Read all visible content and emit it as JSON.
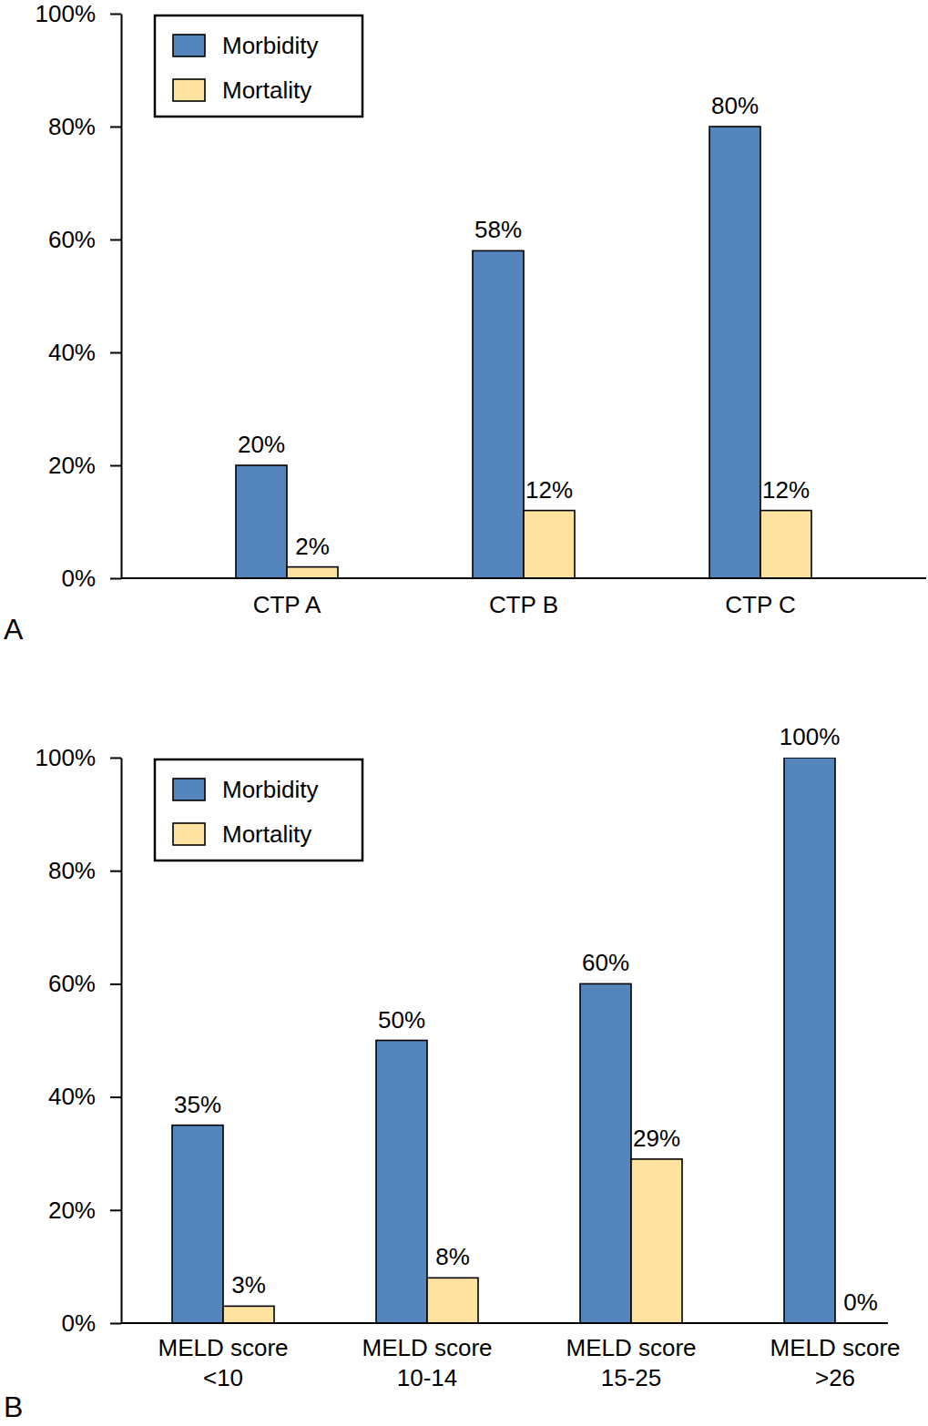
{
  "chart_data": [
    {
      "type": "bar",
      "title": "A",
      "categories": [
        "CTP A",
        "CTP B",
        "CTP C"
      ],
      "series": [
        {
          "name": "Morbidity",
          "color": "#5585bd",
          "values": [
            20,
            58,
            80
          ],
          "value_labels": [
            "20%",
            "58%",
            "80%"
          ]
        },
        {
          "name": "Mortality",
          "color": "#fee3a0",
          "values": [
            2,
            12,
            12
          ],
          "value_labels": [
            "2%",
            "12%",
            "12%"
          ]
        }
      ],
      "ylim": [
        0,
        100
      ],
      "yticks": [
        {
          "value": 0,
          "label": "0%"
        },
        {
          "value": 20,
          "label": "20%"
        },
        {
          "value": 40,
          "label": "40%"
        },
        {
          "value": 60,
          "label": "60%"
        },
        {
          "value": 80,
          "label": "80%"
        },
        {
          "value": 100,
          "label": "100%"
        }
      ],
      "legend": "upper left",
      "data_labels": true
    },
    {
      "type": "bar",
      "title": "B",
      "categories": [
        "MELD score <10",
        "MELD score 10-14",
        "MELD score 15-25",
        "MELD score >26"
      ],
      "series": [
        {
          "name": "Morbidity",
          "color": "#5585bd",
          "values": [
            35,
            50,
            60,
            100
          ],
          "value_labels": [
            "35%",
            "50%",
            "60%",
            "100%"
          ]
        },
        {
          "name": "Mortality",
          "color": "#fee3a0",
          "values": [
            3,
            8,
            29,
            0
          ],
          "value_labels": [
            "3%",
            "8%",
            "29%",
            "0%"
          ]
        }
      ],
      "ylim": [
        0,
        100
      ],
      "yticks": [
        {
          "value": 0,
          "label": "0%"
        },
        {
          "value": 20,
          "label": "20%"
        },
        {
          "value": 40,
          "label": "40%"
        },
        {
          "value": 60,
          "label": "60%"
        },
        {
          "value": 80,
          "label": "80%"
        },
        {
          "value": 100,
          "label": "100%"
        }
      ],
      "legend": "upper left",
      "data_labels": true
    }
  ]
}
